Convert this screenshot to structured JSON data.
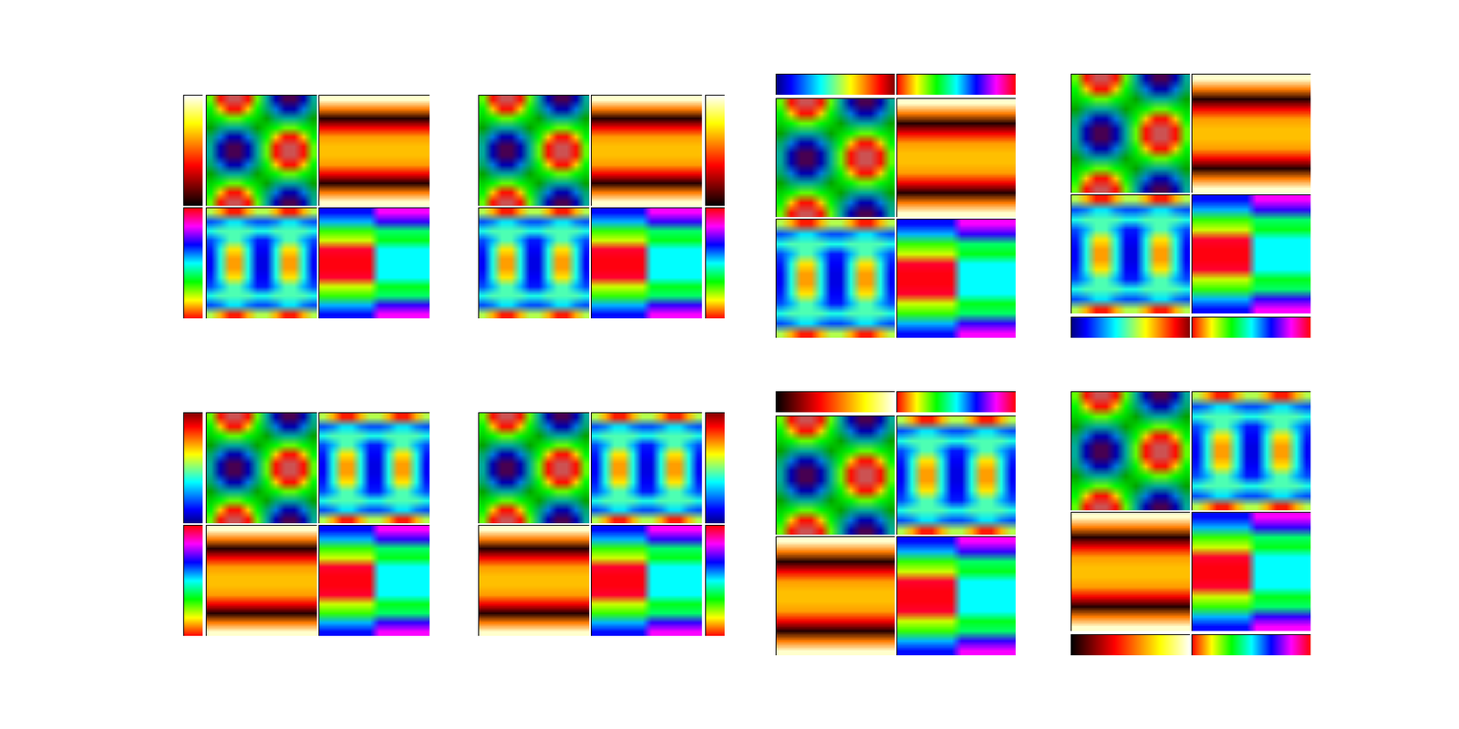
{
  "chart_data": [
    {
      "type": "heatmap",
      "color": "nipy_spectral",
      "clim": [
        -1,
        1
      ],
      "cells": [
        [
          0.25,
          0.69,
          0.94,
          0.94,
          0.69,
          0.25,
          -0.25,
          -0.69,
          -0.94,
          -0.94,
          -0.69,
          -0.25
        ],
        [
          0.18,
          0.5,
          0.69,
          0.69,
          0.5,
          0.18,
          -0.18,
          -0.5,
          -0.69,
          -0.69,
          -0.5,
          -0.18
        ],
        [
          0.07,
          0.18,
          0.25,
          0.25,
          0.18,
          0.07,
          -0.07,
          -0.18,
          -0.25,
          -0.25,
          -0.18,
          -0.07
        ],
        [
          -0.07,
          -0.18,
          -0.25,
          -0.25,
          -0.18,
          -0.07,
          0.07,
          0.18,
          0.25,
          0.25,
          0.18,
          0.07
        ],
        [
          -0.18,
          -0.5,
          -0.69,
          -0.69,
          -0.5,
          -0.18,
          0.18,
          0.5,
          0.69,
          0.69,
          0.5,
          0.18
        ],
        [
          -0.25,
          -0.69,
          -0.94,
          -0.94,
          -0.69,
          -0.25,
          0.25,
          0.69,
          0.94,
          0.94,
          0.69,
          0.25
        ],
        [
          -0.25,
          -0.69,
          -0.94,
          -0.94,
          -0.69,
          -0.25,
          0.25,
          0.69,
          0.94,
          0.94,
          0.69,
          0.25
        ],
        [
          -0.18,
          -0.5,
          -0.69,
          -0.69,
          -0.5,
          -0.18,
          0.18,
          0.5,
          0.69,
          0.69,
          0.5,
          0.18
        ],
        [
          -0.07,
          -0.18,
          -0.25,
          -0.25,
          -0.18,
          -0.07,
          0.07,
          0.18,
          0.25,
          0.25,
          0.18,
          0.07
        ],
        [
          0.07,
          0.18,
          0.25,
          0.25,
          0.18,
          0.07,
          -0.07,
          -0.18,
          -0.25,
          -0.25,
          -0.18,
          -0.07
        ],
        [
          0.18,
          0.5,
          0.69,
          0.69,
          0.5,
          0.18,
          -0.18,
          -0.5,
          -0.69,
          -0.69,
          -0.5,
          -0.18
        ],
        [
          0.25,
          0.69,
          0.94,
          0.94,
          0.69,
          0.25,
          -0.25,
          -0.69,
          -0.94,
          -0.94,
          -0.69,
          -0.25
        ]
      ]
    },
    {
      "type": "heatmap",
      "color": "hot",
      "clim": [
        0,
        1
      ],
      "cells": [
        [
          0.95,
          0.95,
          0.95,
          0.95,
          0.95,
          0.95,
          0.95,
          0.95,
          0.95,
          0.95,
          0.95,
          0.95
        ],
        [
          0.55,
          0.55,
          0.55,
          0.55,
          0.55,
          0.55,
          0.55,
          0.55,
          0.55,
          0.55,
          0.55,
          0.55
        ],
        [
          0.05,
          0.05,
          0.05,
          0.05,
          0.05,
          0.05,
          0.05,
          0.05,
          0.05,
          0.05,
          0.05,
          0.05
        ],
        [
          0.35,
          0.35,
          0.35,
          0.35,
          0.35,
          0.35,
          0.35,
          0.35,
          0.35,
          0.35,
          0.35,
          0.35
        ],
        [
          0.6,
          0.6,
          0.6,
          0.6,
          0.6,
          0.6,
          0.6,
          0.6,
          0.6,
          0.6,
          0.6,
          0.6
        ],
        [
          0.65,
          0.65,
          0.65,
          0.65,
          0.65,
          0.65,
          0.65,
          0.65,
          0.65,
          0.65,
          0.65,
          0.65
        ],
        [
          0.65,
          0.65,
          0.65,
          0.65,
          0.65,
          0.65,
          0.65,
          0.65,
          0.65,
          0.65,
          0.65,
          0.65
        ],
        [
          0.6,
          0.6,
          0.6,
          0.6,
          0.6,
          0.6,
          0.6,
          0.6,
          0.6,
          0.6,
          0.6,
          0.6
        ],
        [
          0.35,
          0.35,
          0.35,
          0.35,
          0.35,
          0.35,
          0.35,
          0.35,
          0.35,
          0.35,
          0.35,
          0.35
        ],
        [
          0.05,
          0.05,
          0.05,
          0.05,
          0.05,
          0.05,
          0.05,
          0.05,
          0.05,
          0.05,
          0.05,
          0.05
        ],
        [
          0.55,
          0.55,
          0.55,
          0.55,
          0.55,
          0.55,
          0.55,
          0.55,
          0.55,
          0.55,
          0.55,
          0.55
        ],
        [
          0.95,
          0.95,
          0.95,
          0.95,
          0.95,
          0.95,
          0.95,
          0.95,
          0.95,
          0.95,
          0.95,
          0.95
        ]
      ]
    },
    {
      "type": "heatmap",
      "color": "jet",
      "clim": [
        0,
        1
      ],
      "cells": [
        [
          0.55,
          0.7,
          0.85,
          0.85,
          0.7,
          0.55,
          0.55,
          0.7,
          0.85,
          0.85,
          0.7,
          0.55
        ],
        [
          0.2,
          0.25,
          0.35,
          0.35,
          0.25,
          0.2,
          0.2,
          0.25,
          0.35,
          0.35,
          0.25,
          0.2
        ],
        [
          0.4,
          0.45,
          0.45,
          0.45,
          0.45,
          0.4,
          0.4,
          0.45,
          0.45,
          0.45,
          0.45,
          0.4
        ],
        [
          0.2,
          0.3,
          0.45,
          0.45,
          0.3,
          0.15,
          0.15,
          0.3,
          0.45,
          0.45,
          0.3,
          0.2
        ],
        [
          0.15,
          0.4,
          0.65,
          0.65,
          0.4,
          0.12,
          0.12,
          0.4,
          0.65,
          0.65,
          0.4,
          0.15
        ],
        [
          0.12,
          0.4,
          0.72,
          0.72,
          0.4,
          0.1,
          0.1,
          0.4,
          0.72,
          0.72,
          0.4,
          0.12
        ],
        [
          0.12,
          0.4,
          0.72,
          0.72,
          0.4,
          0.1,
          0.1,
          0.4,
          0.72,
          0.72,
          0.4,
          0.12
        ],
        [
          0.15,
          0.4,
          0.65,
          0.65,
          0.4,
          0.12,
          0.12,
          0.4,
          0.65,
          0.65,
          0.4,
          0.15
        ],
        [
          0.2,
          0.3,
          0.45,
          0.45,
          0.3,
          0.15,
          0.15,
          0.3,
          0.45,
          0.45,
          0.3,
          0.2
        ],
        [
          0.4,
          0.45,
          0.45,
          0.45,
          0.45,
          0.4,
          0.4,
          0.45,
          0.45,
          0.45,
          0.45,
          0.4
        ],
        [
          0.2,
          0.25,
          0.35,
          0.35,
          0.25,
          0.2,
          0.2,
          0.25,
          0.35,
          0.35,
          0.25,
          0.2
        ],
        [
          0.55,
          0.7,
          0.85,
          0.85,
          0.7,
          0.55,
          0.55,
          0.7,
          0.85,
          0.85,
          0.7,
          0.55
        ]
      ]
    },
    {
      "type": "heatmap",
      "color": "hsv",
      "clim": [
        0,
        1
      ],
      "cells": [
        [
          0.66,
          0.66,
          0.66,
          0.66,
          0.66,
          0.66,
          0.83,
          0.83,
          0.83,
          0.83,
          0.83,
          0.83
        ],
        [
          0.55,
          0.55,
          0.55,
          0.55,
          0.55,
          0.55,
          0.7,
          0.7,
          0.7,
          0.7,
          0.7,
          0.7
        ],
        [
          0.3,
          0.3,
          0.3,
          0.3,
          0.3,
          0.3,
          0.4,
          0.4,
          0.4,
          0.4,
          0.4,
          0.4
        ],
        [
          0.2,
          0.2,
          0.2,
          0.2,
          0.2,
          0.2,
          0.35,
          0.35,
          0.35,
          0.35,
          0.35,
          0.35
        ],
        [
          0.97,
          0.97,
          0.97,
          0.97,
          0.97,
          0.97,
          0.5,
          0.5,
          0.5,
          0.5,
          0.5,
          0.5
        ],
        [
          0.99,
          0.99,
          0.99,
          0.99,
          0.99,
          0.99,
          0.5,
          0.5,
          0.5,
          0.5,
          0.5,
          0.5
        ],
        [
          0.99,
          0.99,
          0.99,
          0.99,
          0.99,
          0.99,
          0.5,
          0.5,
          0.5,
          0.5,
          0.5,
          0.5
        ],
        [
          0.97,
          0.97,
          0.97,
          0.97,
          0.97,
          0.97,
          0.5,
          0.5,
          0.5,
          0.5,
          0.5,
          0.5
        ],
        [
          0.2,
          0.2,
          0.2,
          0.2,
          0.2,
          0.2,
          0.35,
          0.35,
          0.35,
          0.35,
          0.35,
          0.35
        ],
        [
          0.3,
          0.3,
          0.3,
          0.3,
          0.3,
          0.3,
          0.4,
          0.4,
          0.4,
          0.4,
          0.4,
          0.4
        ],
        [
          0.55,
          0.55,
          0.55,
          0.55,
          0.55,
          0.55,
          0.7,
          0.7,
          0.7,
          0.7,
          0.7,
          0.7
        ],
        [
          0.66,
          0.66,
          0.66,
          0.66,
          0.66,
          0.66,
          0.83,
          0.83,
          0.83,
          0.83,
          0.83,
          0.83
        ]
      ]
    }
  ]
}
